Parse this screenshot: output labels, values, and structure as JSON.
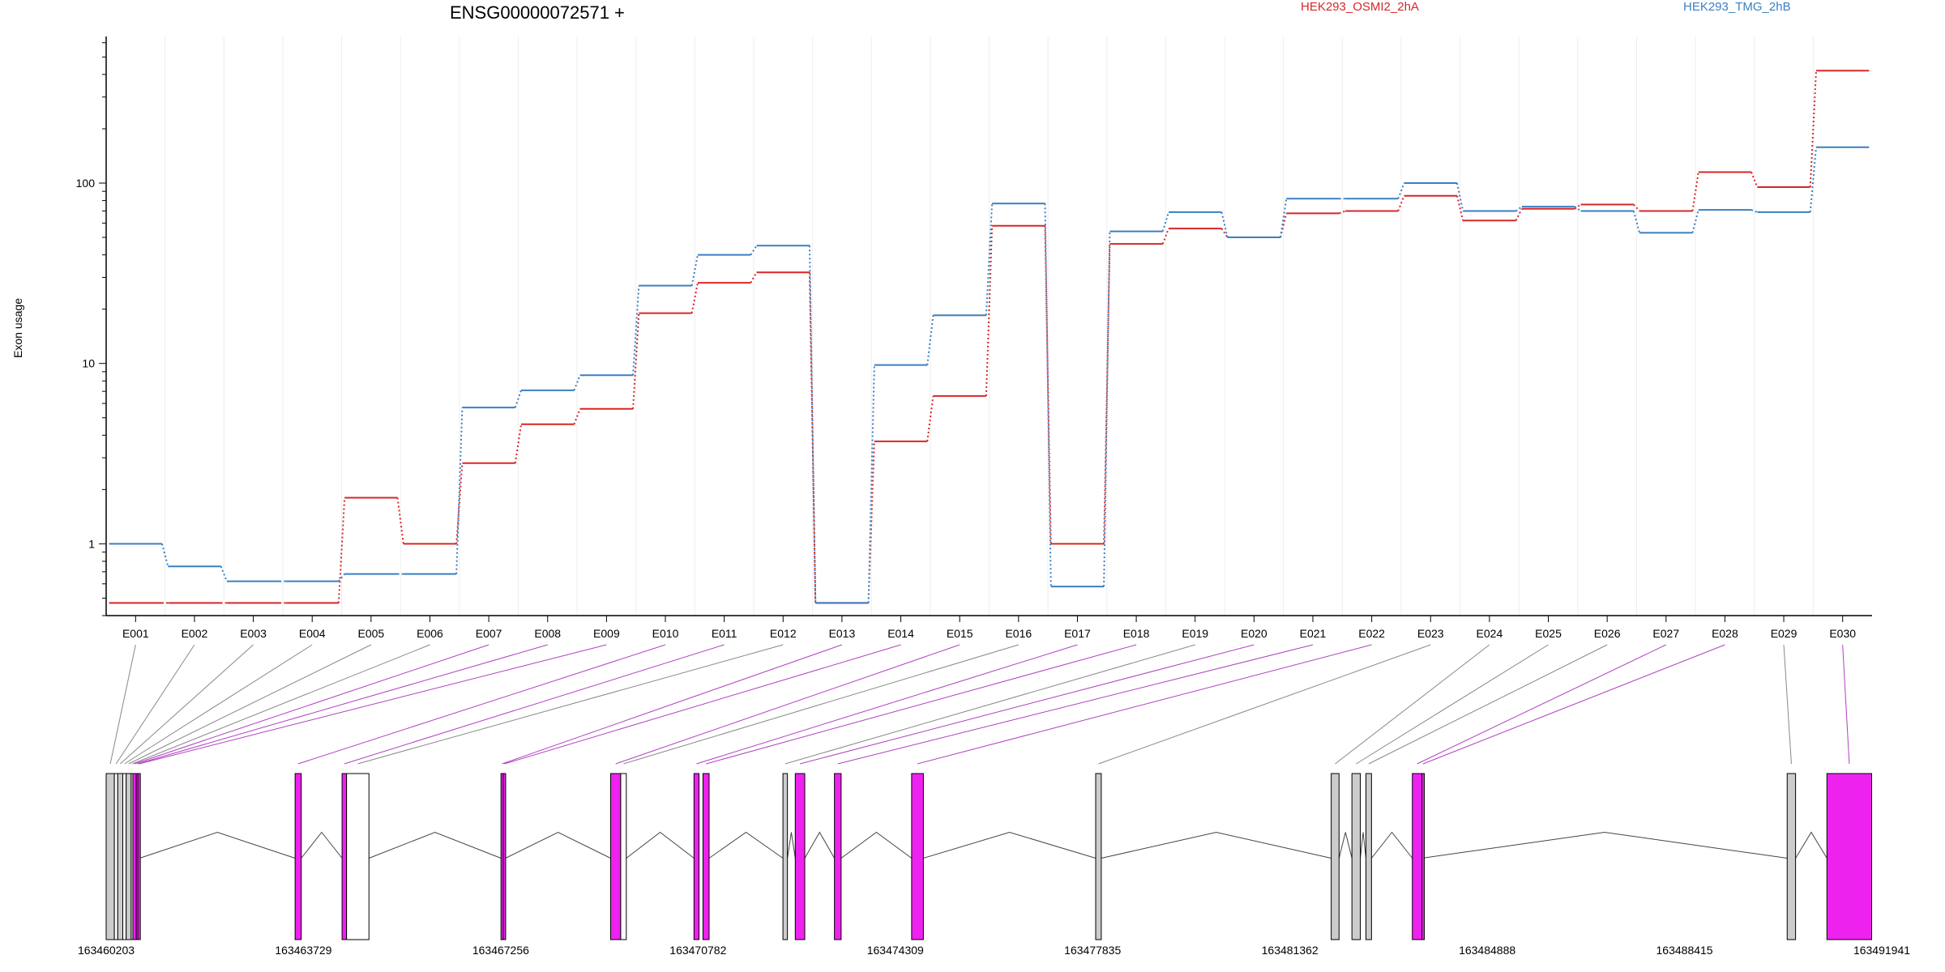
{
  "chart_data": {
    "type": "line",
    "title": "ENSG00000072571 +",
    "ylabel": "Exon usage",
    "xlabel": "",
    "y_scale": "log",
    "ylim": [
      0.4,
      650
    ],
    "y_ticks": [
      {
        "value": 1,
        "label": "1"
      },
      {
        "value": 10,
        "label": "10"
      },
      {
        "value": 100,
        "label": "100"
      }
    ],
    "categories": [
      "E001",
      "E002",
      "E003",
      "E004",
      "E005",
      "E006",
      "E007",
      "E008",
      "E009",
      "E010",
      "E011",
      "E012",
      "E013",
      "E014",
      "E015",
      "E016",
      "E017",
      "E018",
      "E019",
      "E020",
      "E021",
      "E022",
      "E023",
      "E024",
      "E025",
      "E026",
      "E027",
      "E028",
      "E029",
      "E030"
    ],
    "series": [
      {
        "name": "HEK293_OSMI2_2hA",
        "color": "#d62728",
        "values": [
          0.47,
          0.47,
          0.47,
          0.47,
          1.8,
          1.0,
          2.8,
          4.6,
          5.6,
          19,
          28,
          32,
          0.47,
          3.7,
          6.6,
          58,
          1.0,
          46,
          56,
          50,
          68,
          70,
          85,
          62,
          72,
          76,
          70,
          115,
          95,
          420
        ]
      },
      {
        "name": "HEK293_TMG_2hB",
        "color": "#3a7fc0",
        "values": [
          1.0,
          0.75,
          0.62,
          0.62,
          0.68,
          0.68,
          5.7,
          7.1,
          8.6,
          27,
          40,
          45,
          0.47,
          9.8,
          18.5,
          77,
          0.58,
          54,
          69,
          50,
          82,
          82,
          100,
          70,
          74,
          70,
          53,
          71,
          69,
          158
        ]
      }
    ],
    "gene_model": {
      "coordinate_labels": [
        "163460203",
        "163463729",
        "163467256",
        "163470782",
        "163474309",
        "163477835",
        "163481362",
        "163484888",
        "163488415",
        "163491941"
      ],
      "coordinate_range": [
        163460203,
        163491941
      ],
      "colors": {
        "significant": "#ee22ee",
        "normal": "#cccccc",
        "outline": "#000000"
      },
      "exons": [
        {
          "id": "E001",
          "start": 163460203,
          "end": 163460350,
          "fill": "#cccccc"
        },
        {
          "id": "E002",
          "start": 163460350,
          "end": 163460410,
          "fill": "#ffffff"
        },
        {
          "id": "E003",
          "start": 163460410,
          "end": 163460500,
          "fill": "#cccccc"
        },
        {
          "id": "E004",
          "start": 163460500,
          "end": 163460560,
          "fill": "#ffffff"
        },
        {
          "id": "E005",
          "start": 163460560,
          "end": 163460650,
          "fill": "#cccccc"
        },
        {
          "id": "E006",
          "start": 163460650,
          "end": 163460680,
          "fill": "#ffffff"
        },
        {
          "id": "E007",
          "start": 163460680,
          "end": 163460740,
          "fill": "#ee22ee"
        },
        {
          "id": "E008",
          "start": 163460740,
          "end": 163460770,
          "fill": "#ee22ee"
        },
        {
          "id": "E009",
          "start": 163460770,
          "end": 163460800,
          "fill": "#ee22ee"
        },
        {
          "id": "E010",
          "start": 163463580,
          "end": 163463690,
          "fill": "#ee22ee"
        },
        {
          "id": "E011",
          "start": 163464420,
          "end": 163464500,
          "fill": "#ee22ee"
        },
        {
          "id": "E012",
          "start": 163464500,
          "end": 163464900,
          "fill": "#ffffff"
        },
        {
          "id": "E013",
          "start": 163467260,
          "end": 163467300,
          "fill": "#ee22ee"
        },
        {
          "id": "E014",
          "start": 163467300,
          "end": 163467340,
          "fill": "#ee22ee"
        },
        {
          "id": "E015",
          "start": 163469220,
          "end": 163469400,
          "fill": "#ee22ee"
        },
        {
          "id": "E016",
          "start": 163469400,
          "end": 163469500,
          "fill": "#ffffff"
        },
        {
          "id": "E017",
          "start": 163470710,
          "end": 163470800,
          "fill": "#ee22ee"
        },
        {
          "id": "E018",
          "start": 163470870,
          "end": 163470980,
          "fill": "#ee22ee"
        },
        {
          "id": "E019",
          "start": 163472300,
          "end": 163472380,
          "fill": "#cccccc"
        },
        {
          "id": "E020",
          "start": 163472520,
          "end": 163472690,
          "fill": "#ee22ee"
        },
        {
          "id": "E021",
          "start": 163473220,
          "end": 163473340,
          "fill": "#ee22ee"
        },
        {
          "id": "E022",
          "start": 163474600,
          "end": 163474810,
          "fill": "#ee22ee"
        },
        {
          "id": "E023",
          "start": 163477890,
          "end": 163477990,
          "fill": "#cccccc"
        },
        {
          "id": "E024",
          "start": 163482100,
          "end": 163482240,
          "fill": "#cccccc"
        },
        {
          "id": "E025",
          "start": 163482470,
          "end": 163482620,
          "fill": "#cccccc"
        },
        {
          "id": "E026",
          "start": 163482720,
          "end": 163482820,
          "fill": "#cccccc"
        },
        {
          "id": "E027",
          "start": 163483550,
          "end": 163483720,
          "fill": "#ee22ee"
        },
        {
          "id": "E028",
          "start": 163483720,
          "end": 163483720,
          "fill": "#ee22ee"
        },
        {
          "id": "E029",
          "start": 163490250,
          "end": 163490400,
          "fill": "#cccccc"
        },
        {
          "id": "E030",
          "start": 163490960,
          "end": 163491760,
          "fill": "#ee22ee"
        }
      ]
    }
  }
}
